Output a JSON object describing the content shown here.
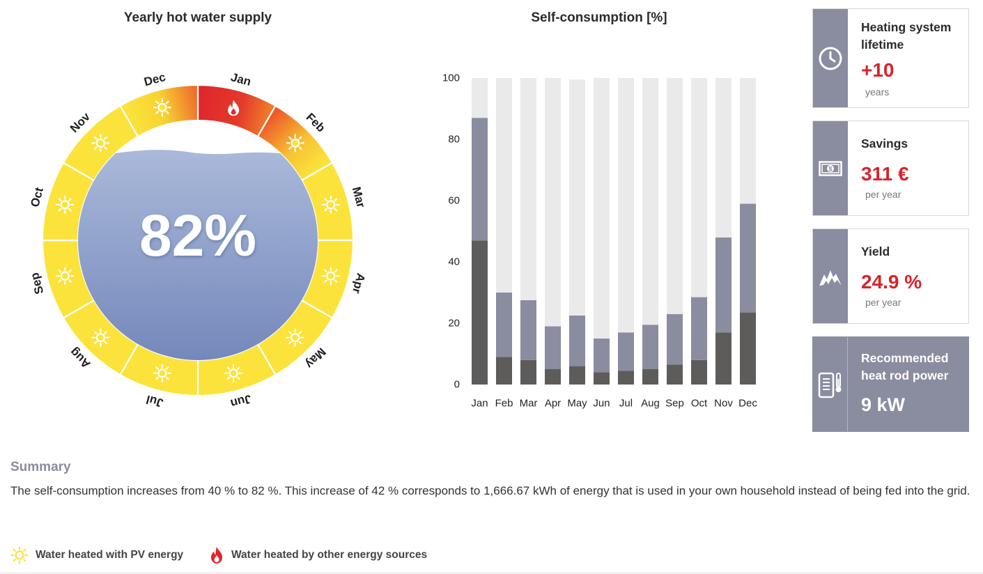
{
  "wheel": {
    "title": "Yearly hot water supply",
    "percentage": "82%",
    "months": [
      {
        "label": "Jan",
        "source": "other"
      },
      {
        "label": "Feb",
        "source": "pv"
      },
      {
        "label": "Mar",
        "source": "pv"
      },
      {
        "label": "Apr",
        "source": "pv"
      },
      {
        "label": "May",
        "source": "pv"
      },
      {
        "label": "Jun",
        "source": "pv"
      },
      {
        "label": "Jul",
        "source": "pv"
      },
      {
        "label": "Aug",
        "source": "pv"
      },
      {
        "label": "Sep",
        "source": "pv"
      },
      {
        "label": "Oct",
        "source": "pv"
      },
      {
        "label": "Nov",
        "source": "pv"
      },
      {
        "label": "Dec",
        "source": "pv"
      }
    ],
    "colors": {
      "pv": "#fbe33c",
      "other": "#e0262c",
      "water": "#8a9ccc"
    }
  },
  "chart_data": {
    "type": "bar",
    "title": "Self-consumption [%]",
    "categories": [
      "Jan",
      "Feb",
      "Mar",
      "Apr",
      "May",
      "Jun",
      "Jul",
      "Aug",
      "Sep",
      "Oct",
      "Nov",
      "Dec"
    ],
    "series": [
      {
        "values": [
          47,
          9,
          8,
          5,
          6,
          4,
          4.5,
          5,
          6.5,
          8,
          17,
          23.5
        ],
        "color": "#5e5c5b"
      },
      {
        "values": [
          40,
          21,
          19.5,
          14,
          16.5,
          11,
          12.5,
          14.5,
          16.5,
          20.5,
          31,
          35.5
        ],
        "color": "#8a8c9f"
      },
      {
        "values": [
          13,
          70,
          72.5,
          81,
          77,
          85,
          83,
          80.5,
          77,
          71.5,
          52,
          41
        ],
        "color": "#eaeaea"
      }
    ],
    "ylim": [
      0,
      100
    ],
    "yticks": [
      0,
      20,
      40,
      60,
      80,
      100
    ],
    "stacked": true,
    "grid": false
  },
  "cards": {
    "lifetime": {
      "label": "Heating system lifetime",
      "value": "+10",
      "unit": "years",
      "icon": "clock-icon"
    },
    "savings": {
      "label": "Savings",
      "value": "311 €",
      "unit": "per year",
      "icon": "banknote-icon"
    },
    "yield": {
      "label": "Yield",
      "value": "24.9 %",
      "unit": "per year",
      "icon": "mountain-icon"
    },
    "heatrod": {
      "label": "Recommended heat rod power",
      "value": "9 kW",
      "icon": "boiler-icon"
    }
  },
  "summary": {
    "title": "Summary",
    "text": "The self-consumption increases from 40 % to 82 %. This increase of 42 % corresponds to 1,666.67 kWh of energy that is used in your own household instead of being fed into the grid."
  },
  "legend": {
    "pv": {
      "label": "Water heated with PV energy",
      "icon": "sun-icon",
      "color": "#fbe33c"
    },
    "other": {
      "label": "Water heated by other energy sources",
      "icon": "flame-icon",
      "color": "#e0262c"
    }
  }
}
